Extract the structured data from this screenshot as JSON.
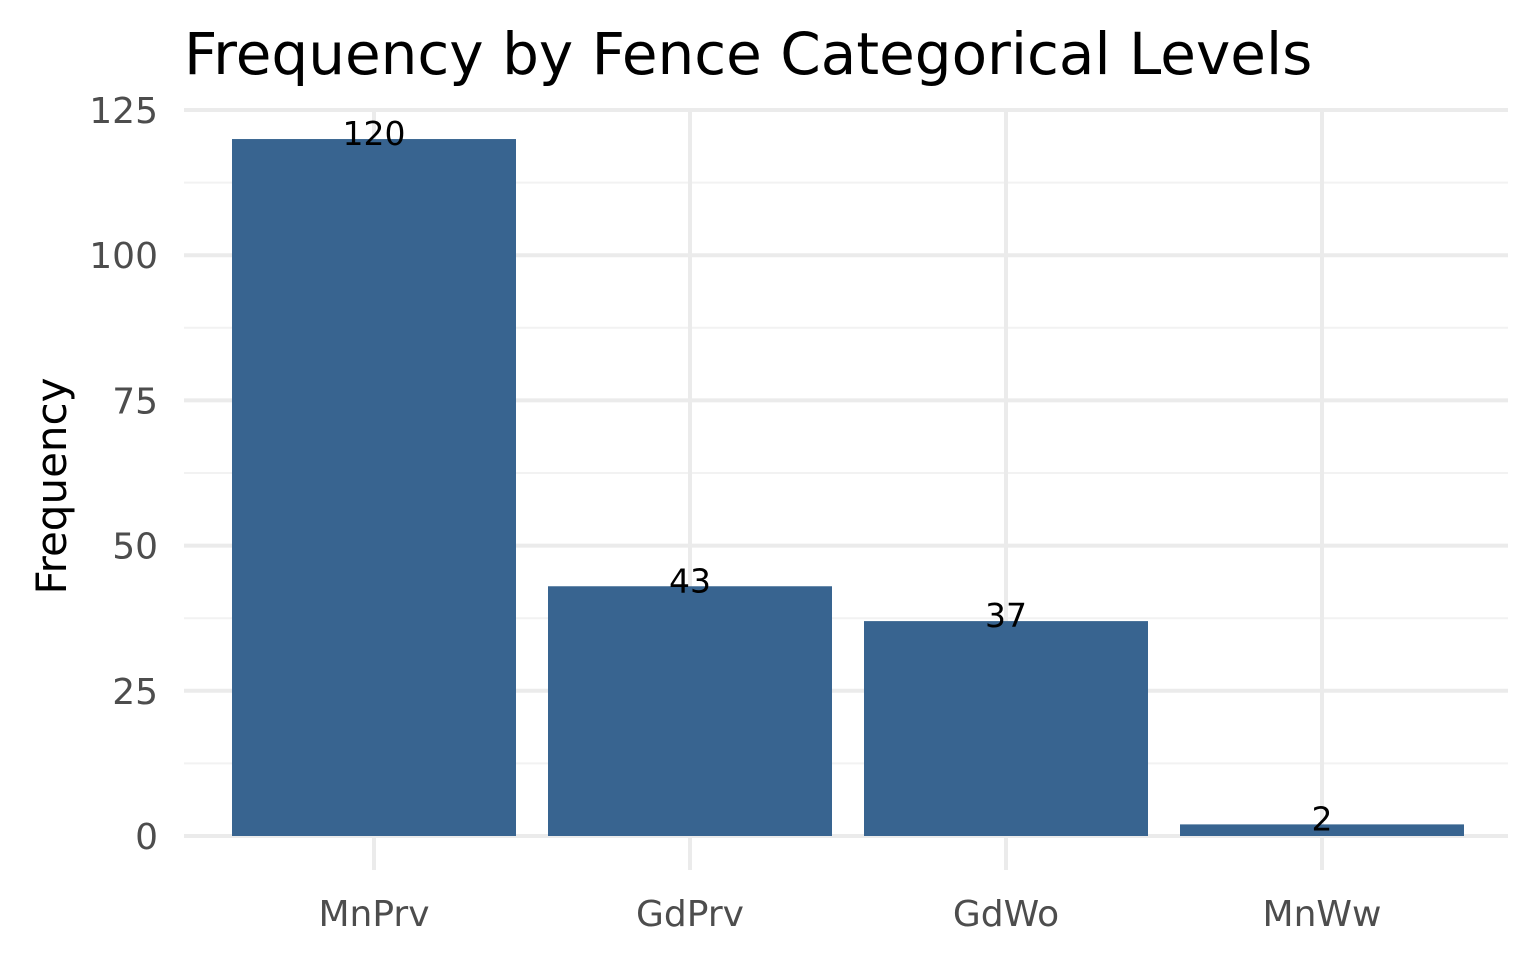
{
  "chart_data": {
    "type": "bar",
    "title": "Frequency by Fence Categorical Levels",
    "xlabel": "",
    "ylabel": "Frequency",
    "categories": [
      "MnPrv",
      "GdPrv",
      "GdWo",
      "MnWw"
    ],
    "values": [
      120,
      43,
      37,
      2
    ],
    "data_labels": [
      "120",
      "43",
      "37",
      "2"
    ],
    "ylim": [
      0,
      125
    ],
    "y_ticks": [
      0,
      25,
      50,
      75,
      100,
      125
    ],
    "y_tick_labels": [
      "0",
      "25",
      "50",
      "75",
      "100",
      "125"
    ],
    "grid": true,
    "legend": "none",
    "bar_color": "#386490"
  }
}
